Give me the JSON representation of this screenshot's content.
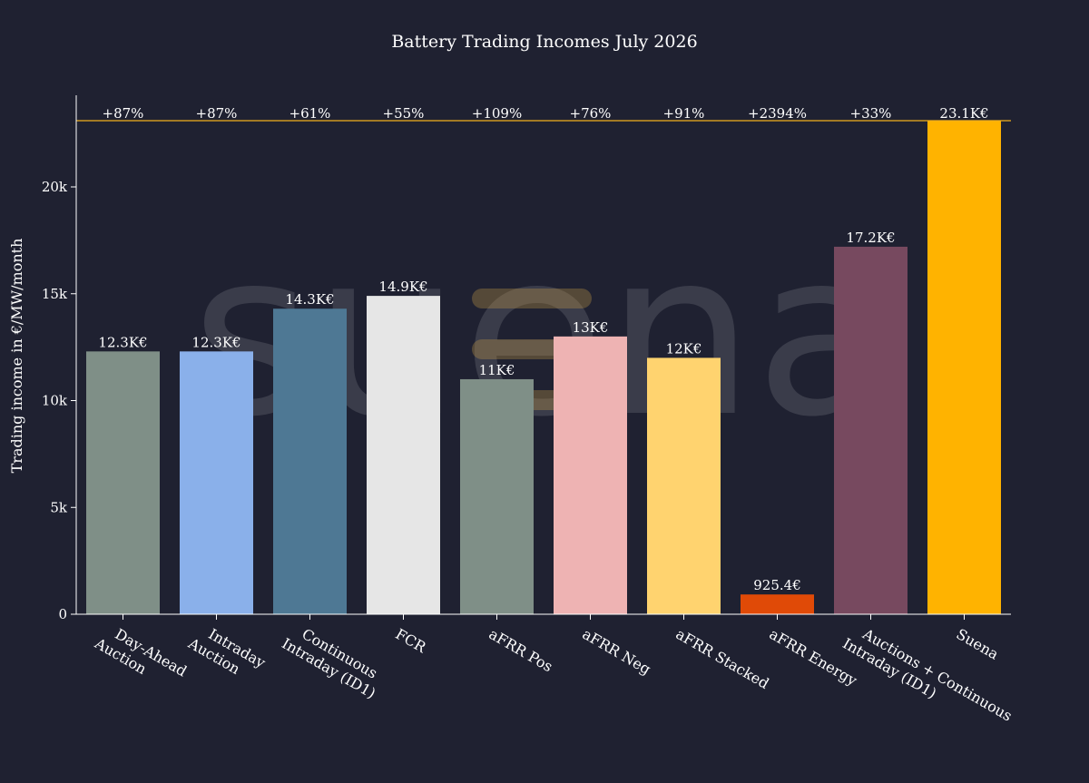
{
  "chart_data": {
    "type": "bar",
    "title": "Battery Trading Incomes July 2026",
    "ylabel": "Trading income in €/MW/month",
    "xlabel": "",
    "ylim": [
      0,
      23100
    ],
    "yticks": [
      0,
      5000,
      10000,
      15000,
      20000
    ],
    "ytick_labels": [
      "0",
      "5k",
      "10k",
      "15k",
      "20k"
    ],
    "reference_line": {
      "value": 23100,
      "color": "#f2b01e"
    },
    "categories": [
      [
        "Day-Ahead",
        "Auction"
      ],
      [
        "Intraday",
        "Auction"
      ],
      [
        "Continuous",
        "Intraday (ID1)"
      ],
      [
        "FCR"
      ],
      [
        "aFRR Pos"
      ],
      [
        "aFRR Neg"
      ],
      [
        "aFRR Stacked"
      ],
      [
        "aFRR Energy"
      ],
      [
        "Auctions + Continuous",
        "Intraday (ID1)"
      ],
      [
        "Suena"
      ]
    ],
    "values": [
      12300,
      12300,
      14300,
      14900,
      11000,
      13000,
      12000,
      925.4,
      17200,
      23100
    ],
    "value_labels": [
      "12.3K€",
      "12.3K€",
      "14.3K€",
      "14.9K€",
      "11K€",
      "13K€",
      "12K€",
      "925.4€",
      "17.2K€",
      "23.1K€"
    ],
    "top_labels": [
      "+87%",
      "+87%",
      "+61%",
      "+55%",
      "+109%",
      "+76%",
      "+91%",
      "+2394%",
      "+33%",
      "23.1K€"
    ],
    "colors": [
      "#7f8f87",
      "#8ab0ea",
      "#4e7894",
      "#e6e6e6",
      "#7f8f87",
      "#eeb3b3",
      "#ffd36f",
      "#e04a07",
      "#77495f",
      "#ffb300"
    ],
    "grid": false,
    "legend": "none"
  },
  "watermark": {
    "text": "suena",
    "icon": "suena-logo-bars-icon",
    "icon_color": "#d4a64a"
  },
  "style": {
    "background": "#1f2131",
    "axis_color": "#ffffff"
  }
}
